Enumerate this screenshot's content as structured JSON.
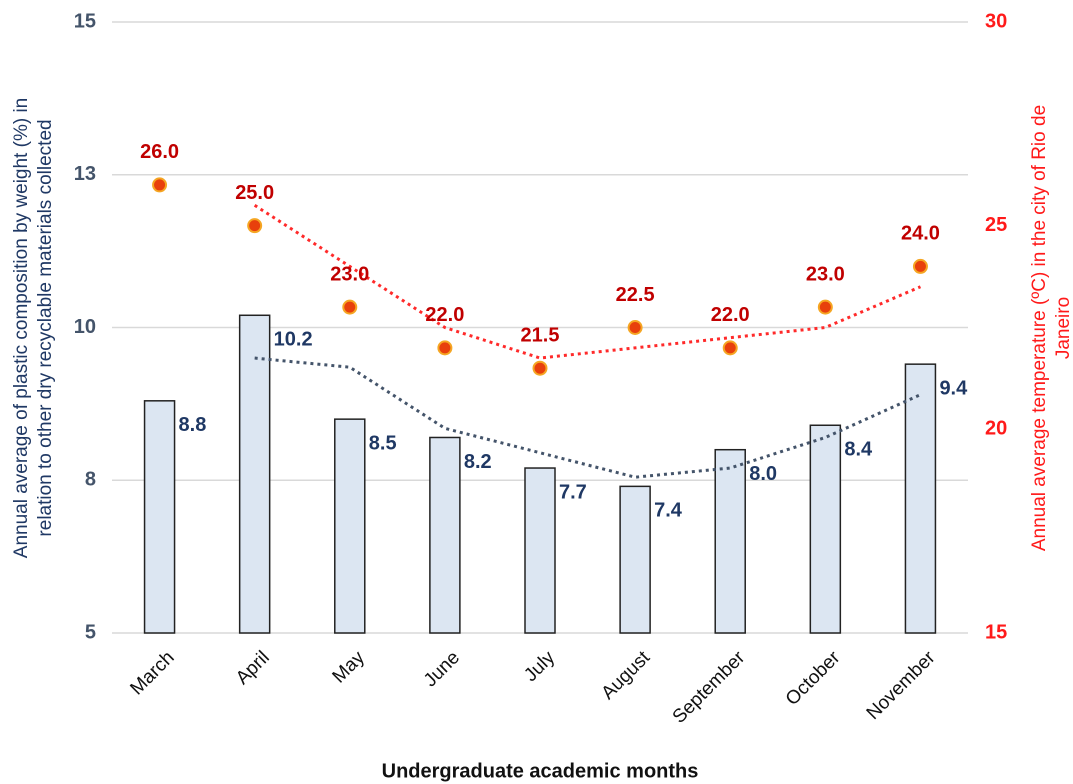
{
  "chart_data": {
    "type": "bar-line",
    "x_label": "Undergraduate academic months",
    "y_label": [
      "Annual average of plastic composition by weight (%) in",
      "relation to other dry recyclable materials collected"
    ],
    "y2_label": [
      "Annual average temperature (ºC) in the city of Rio de",
      "Janeiro"
    ],
    "categories": [
      "March",
      "April",
      "May",
      "June",
      "July",
      "August",
      "September",
      "October",
      "November"
    ],
    "series": [
      {
        "type": "bar",
        "color": "#dce6f2",
        "label_color": "#1f3864",
        "trend_color": "#44546a",
        "trendline_period": 2,
        "values": [
          8.8,
          10.2,
          8.5,
          8.2,
          7.7,
          7.4,
          8.0,
          8.4,
          9.4
        ],
        "value_labels": [
          "8.8",
          "10.2",
          "8.5",
          "8.2",
          "7.7",
          "7.4",
          "8.0",
          "8.4",
          "9.4"
        ]
      },
      {
        "type": "scatter",
        "axis": "y2",
        "color": "#e8400c",
        "label_color": "#c00000",
        "trend_color": "#ff2a2a",
        "trendline_period": 2,
        "values": [
          26,
          25,
          23,
          22,
          21.5,
          22.5,
          22,
          23,
          24
        ],
        "value_labels": [
          "26.0",
          "25.0",
          "23.0",
          "22.0",
          "21.5",
          "22.5",
          "22.0",
          "23.0",
          "24.0"
        ]
      }
    ],
    "ylim": [
      5,
      15
    ],
    "yticks": [
      5,
      {
        "value": 7.5,
        "label": "8"
      },
      10,
      {
        "value": 12.5,
        "label": "13"
      },
      15
    ],
    "y2lim": [
      15,
      30
    ],
    "y2ticks": [
      15,
      20,
      25,
      30
    ],
    "grid": true
  }
}
